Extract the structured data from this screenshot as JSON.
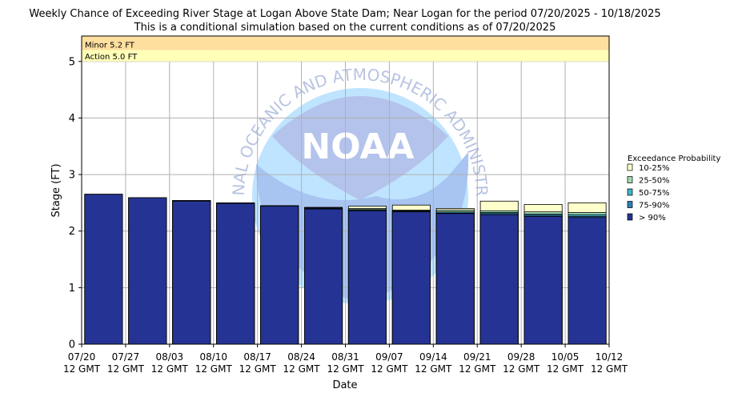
{
  "chart_data": {
    "type": "bar",
    "title": "Weekly Chance of Exceeding River Stage at Logan Above State Dam; Near Logan for the period 07/20/2025 - 10/18/2025",
    "subtitle": "This is a conditional simulation based on the current conditions as of 07/20/2025",
    "xlabel": "Date",
    "ylabel": "Stage (FT)",
    "ylim": [
      0,
      5.45
    ],
    "yticks": [
      0,
      1,
      2,
      3,
      4,
      5
    ],
    "x_tick_labels": [
      [
        "07/20",
        "12 GMT"
      ],
      [
        "07/27",
        "12 GMT"
      ],
      [
        "08/03",
        "12 GMT"
      ],
      [
        "08/10",
        "12 GMT"
      ],
      [
        "08/17",
        "12 GMT"
      ],
      [
        "08/24",
        "12 GMT"
      ],
      [
        "08/31",
        "12 GMT"
      ],
      [
        "09/07",
        "12 GMT"
      ],
      [
        "09/14",
        "12 GMT"
      ],
      [
        "09/21",
        "12 GMT"
      ],
      [
        "09/28",
        "12 GMT"
      ],
      [
        "10/05",
        "12 GMT"
      ],
      [
        "10/12",
        "12 GMT"
      ]
    ],
    "grid": true,
    "thresholds": [
      {
        "label": "Minor 5.2 FT",
        "value": 5.2,
        "color": "#ffdf9e"
      },
      {
        "label": "Action 5.0 FT",
        "value": 5.0,
        "color": "#ffffb8"
      }
    ],
    "legend": {
      "title": "Exceedance Probability",
      "placement": "right",
      "entries": [
        {
          "name": "10-25%",
          "color": "#ffffcc"
        },
        {
          "name": "25-50%",
          "color": "#a1dab4"
        },
        {
          "name": "50-75%",
          "color": "#41b6c4"
        },
        {
          "name": "75-90%",
          "color": "#2c7fb8"
        },
        {
          "name": "> 90%",
          "color": "#253494"
        }
      ]
    },
    "series": [
      {
        "name": "> 90%",
        "values": [
          2.65,
          2.59,
          2.53,
          2.49,
          2.44,
          2.39,
          2.36,
          2.34,
          2.31,
          2.29,
          2.26,
          2.24,
          2.23
        ]
      },
      {
        "name": "75-90%",
        "values": [
          2.65,
          2.59,
          2.53,
          2.49,
          2.45,
          2.4,
          2.37,
          2.35,
          2.32,
          2.31,
          2.28,
          2.26,
          2.25
        ]
      },
      {
        "name": "50-75%",
        "values": [
          2.65,
          2.59,
          2.54,
          2.49,
          2.45,
          2.41,
          2.38,
          2.36,
          2.34,
          2.33,
          2.3,
          2.29,
          2.28
        ]
      },
      {
        "name": "25-50%",
        "values": [
          2.65,
          2.59,
          2.54,
          2.49,
          2.45,
          2.41,
          2.4,
          2.37,
          2.37,
          2.36,
          2.34,
          2.33,
          2.33
        ]
      },
      {
        "name": "10-25%",
        "values": [
          2.65,
          2.59,
          2.54,
          2.5,
          2.45,
          2.42,
          2.44,
          2.46,
          2.4,
          2.53,
          2.47,
          2.5,
          2.5
        ]
      }
    ]
  }
}
